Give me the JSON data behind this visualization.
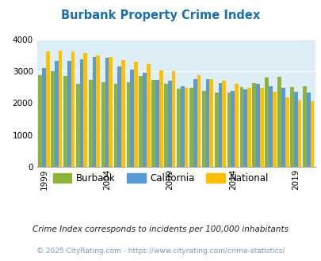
{
  "title": "Burbank Property Crime Index",
  "title_color": "#1a6faf",
  "years": [
    1999,
    2000,
    2001,
    2002,
    2003,
    2004,
    2005,
    2006,
    2007,
    2008,
    2009,
    2010,
    2011,
    2012,
    2013,
    2014,
    2015,
    2016,
    2017,
    2018,
    2019,
    2020
  ],
  "burbank": [
    2870,
    3000,
    2840,
    2600,
    2720,
    2650,
    2600,
    2640,
    2860,
    2720,
    2590,
    2450,
    2470,
    2390,
    2320,
    2330,
    2500,
    2620,
    2790,
    2820,
    2500,
    2520
  ],
  "california": [
    3090,
    3310,
    3330,
    3380,
    3440,
    3430,
    3140,
    3040,
    2940,
    2720,
    2710,
    2540,
    2760,
    2740,
    2620,
    2380,
    2420,
    2600,
    2530,
    2480,
    2360,
    2330
  ],
  "national": [
    3620,
    3640,
    3620,
    3570,
    3500,
    3450,
    3350,
    3290,
    3210,
    3030,
    2990,
    2490,
    2870,
    2760,
    2690,
    2590,
    2490,
    2470,
    2360,
    2190,
    2090,
    2070
  ],
  "burbank_color": "#8db33a",
  "california_color": "#5b9bd5",
  "national_color": "#ffc000",
  "bg_color": "#ddeef6",
  "ylim": [
    0,
    4000
  ],
  "yticks": [
    0,
    1000,
    2000,
    3000,
    4000
  ],
  "xtick_years": [
    1999,
    2004,
    2009,
    2014,
    2019
  ],
  "legend_labels": [
    "Burbank",
    "California",
    "National"
  ],
  "subtitle": "Crime Index corresponds to incidents per 100,000 inhabitants",
  "subtitle_color": "#222222",
  "footer": "© 2025 CityRating.com - https://www.cityrating.com/crime-statistics/",
  "footer_color": "#7a9abf"
}
